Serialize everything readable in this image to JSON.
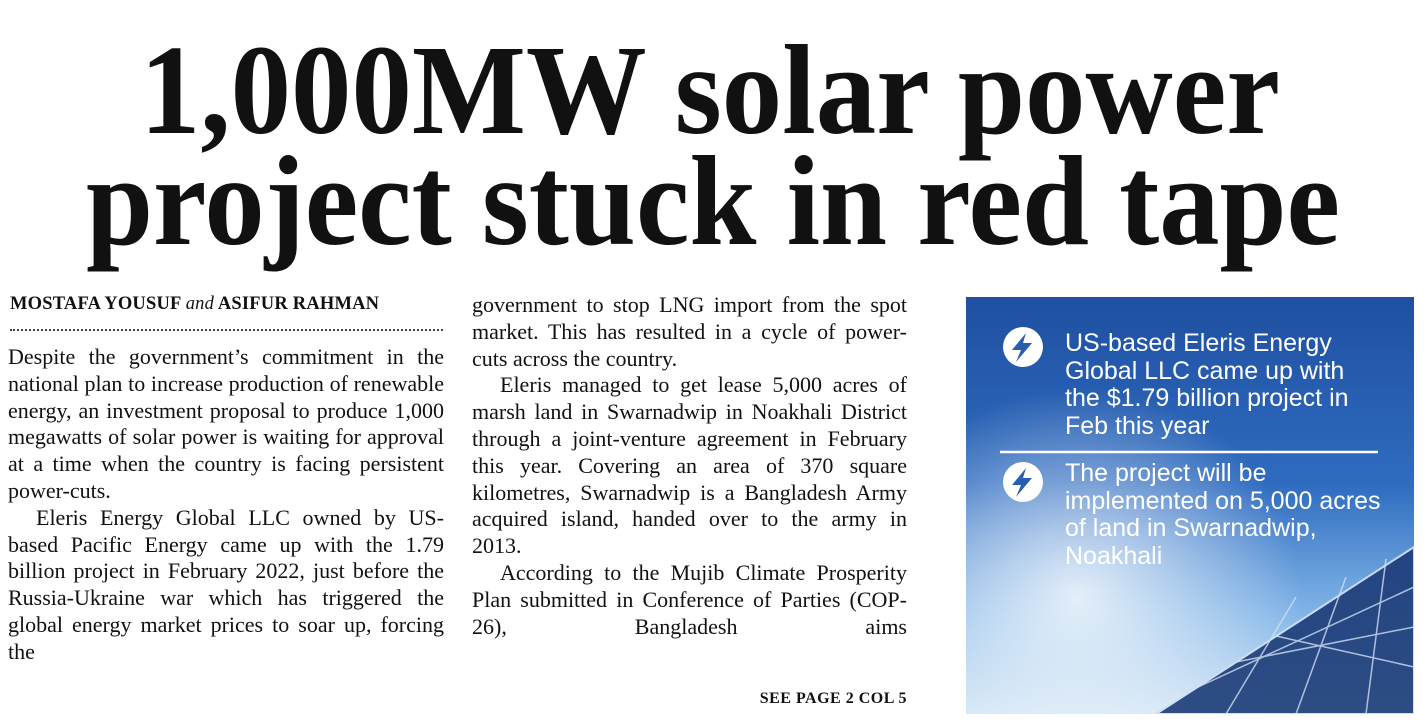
{
  "headline": {
    "lines": [
      "1,000MW solar power",
      "project stuck in red tape"
    ]
  },
  "byline": {
    "author1": "MOSTAFA YOUSUF",
    "conjunction": "and",
    "author2": "ASIFUR RAHMAN"
  },
  "column1": {
    "paragraphs": [
      "Despite the government’s commitment in the national plan to increase production of renewable energy, an investment proposal to produce 1,000 megawatts of solar power is waiting for approval at a time when the country is facing persistent power-cuts.",
      "Eleris Energy Global LLC owned by US-based Pacific Energy came up with the 1.79 billion project in February 2022, just before the Russia-Ukraine war which has triggered the global energy market prices to soar up, forcing the"
    ]
  },
  "column2": {
    "paragraphs": [
      "government to stop LNG import from the spot market. This has resulted in a cycle of power-cuts across the country.",
      "Eleris managed to get lease 5,000 acres of marsh land in Swarnadwip in Noakhali District through a joint-venture agreement in February this year. Covering an area of 370 square kilometres, Swarnadwip is a Bangladesh Army acquired island, handed over to the army in 2013.",
      "According to the Mujib Climate Prosperity Plan submitted in Conference of Parties (COP-26), Bangladesh aims"
    ],
    "jump": "SEE PAGE 2 COL 5"
  },
  "sidebar": {
    "bullets": [
      "US-based Eleris Energy Global LLC came up with the $1.79 billion project in Feb this year",
      "The project will be implemented on 5,000 acres of land in Swarnadwip, Noakhali"
    ]
  }
}
